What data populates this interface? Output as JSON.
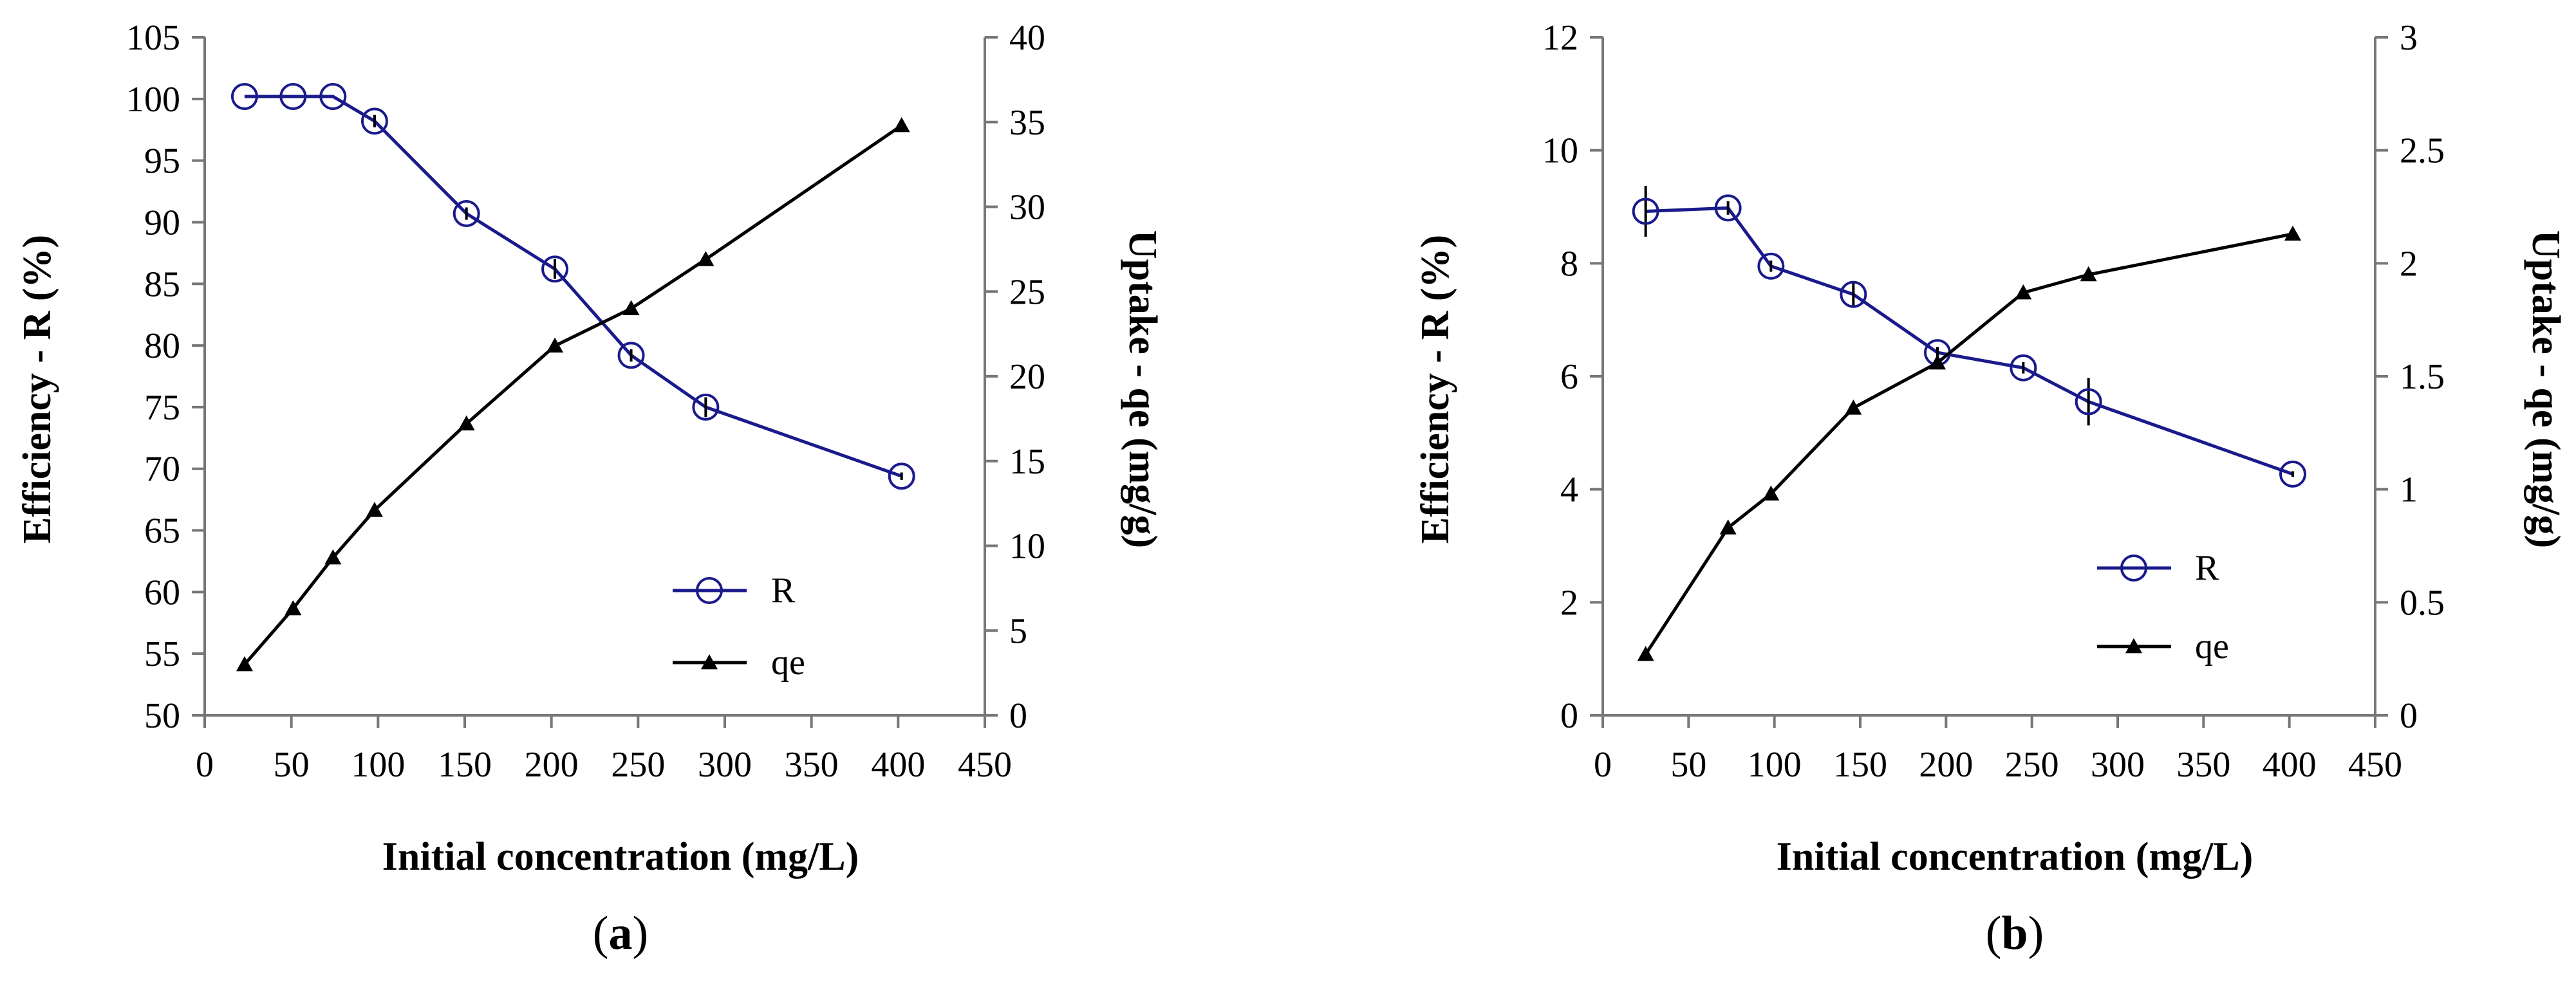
{
  "figure": {
    "panels": [
      {
        "id": "a",
        "label_open": "(",
        "label_letter": "a",
        "label_close": ")",
        "xlabel": "Initial concentration (mg/L)",
        "ylabel_left": "Efficiency - R (%)",
        "ylabel_right": "Uptake - qe (mg/g)",
        "legend_R": "R",
        "legend_qe": "qe"
      },
      {
        "id": "b",
        "label_open": "(",
        "label_letter": "b",
        "label_close": ")",
        "xlabel": "Initial concentration (mg/L)",
        "ylabel_left": "Efficiency - R (%)",
        "ylabel_right": "Uptake - qe (mg/g)",
        "legend_R": "R",
        "legend_qe": "qe"
      }
    ]
  },
  "chart_data": [
    {
      "type": "line",
      "panel": "a",
      "title": "",
      "xlabel": "Initial concentration (mg/L)",
      "ylabel": "Efficiency - R (%)",
      "y2label": "Uptake - qe (mg/g)",
      "xlim": [
        0,
        450
      ],
      "ylim": [
        50,
        105
      ],
      "y2lim": [
        0,
        40
      ],
      "xticks": [
        "0",
        "50",
        "100",
        "150",
        "200",
        "250",
        "300",
        "350",
        "400",
        "450"
      ],
      "yticks": [
        "50",
        "55",
        "60",
        "65",
        "70",
        "75",
        "80",
        "85",
        "90",
        "95",
        "100",
        "105"
      ],
      "y2ticks": [
        "0",
        "5",
        "10",
        "15",
        "20",
        "25",
        "30",
        "35",
        "40"
      ],
      "legend_position": "lower-right",
      "series": [
        {
          "name": "R",
          "axis": "left",
          "color": "#1a1a8c",
          "marker": "open-circle",
          "x": [
            23,
            51,
            74,
            98,
            151,
            202,
            246,
            289,
            402
          ],
          "y": [
            100.2,
            100.2,
            100.2,
            98.2,
            90.7,
            86.2,
            79.2,
            75.0,
            69.4
          ],
          "yerr": [
            0,
            0,
            0,
            0.5,
            0.5,
            0.8,
            0.5,
            0.8,
            0.3
          ]
        },
        {
          "name": "qe",
          "axis": "right",
          "color": "#000000",
          "marker": "filled-triangle",
          "x": [
            23,
            51,
            74,
            98,
            151,
            202,
            246,
            289,
            402
          ],
          "y": [
            3.0,
            6.3,
            9.3,
            12.1,
            17.2,
            21.8,
            24.0,
            26.9,
            34.8
          ]
        }
      ]
    },
    {
      "type": "line",
      "panel": "b",
      "title": "",
      "xlabel": "Initial concentration (mg/L)",
      "ylabel": "Efficiency - R (%)",
      "y2label": "Uptake - qe (mg/g)",
      "xlim": [
        0,
        450
      ],
      "ylim": [
        0,
        12
      ],
      "y2lim": [
        0,
        3
      ],
      "xticks": [
        "0",
        "50",
        "100",
        "150",
        "200",
        "250",
        "300",
        "350",
        "400",
        "450"
      ],
      "yticks": [
        "0",
        "2",
        "4",
        "6",
        "8",
        "10",
        "12"
      ],
      "y2ticks": [
        "0",
        "0.5",
        "1",
        "1.5",
        "2",
        "2.5",
        "3"
      ],
      "legend_position": "lower-right",
      "series": [
        {
          "name": "R",
          "axis": "left",
          "color": "#1a1a8c",
          "marker": "open-circle",
          "x": [
            25,
            73,
            98,
            146,
            195,
            245,
            283,
            402
          ],
          "y": [
            8.92,
            8.98,
            7.95,
            7.45,
            6.42,
            6.15,
            5.55,
            4.27
          ],
          "yerr": [
            0.45,
            0.12,
            0.1,
            0.2,
            0.1,
            0.1,
            0.42,
            0.05
          ]
        },
        {
          "name": "qe",
          "axis": "right",
          "color": "#000000",
          "marker": "filled-triangle",
          "x": [
            25,
            73,
            98,
            146,
            195,
            245,
            283,
            402
          ],
          "y": [
            0.27,
            0.83,
            0.98,
            1.36,
            1.56,
            1.87,
            1.95,
            2.13
          ]
        }
      ]
    }
  ]
}
